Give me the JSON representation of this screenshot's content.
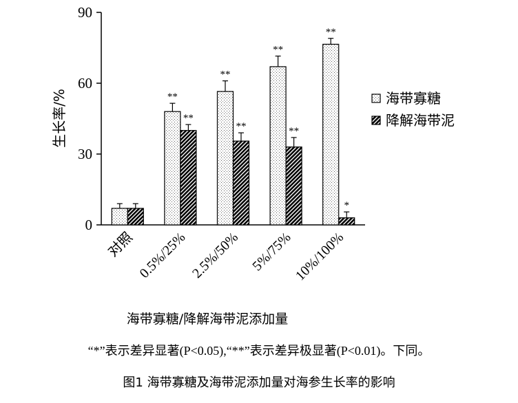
{
  "chart_data": {
    "type": "bar",
    "ylabel": "生长率/%",
    "xlabel": "海带寡糖/降解海带泥添加量",
    "ylim": [
      0,
      90
    ],
    "yticks": [
      0,
      30,
      60,
      90
    ],
    "categories": [
      "对照",
      "0.5%/25%",
      "2.5%/50%",
      "5%/75%",
      "10%/100%"
    ],
    "series": [
      {
        "name": "海带寡糖",
        "pattern": "dotted",
        "values": [
          7,
          48,
          56.5,
          67,
          76.5
        ],
        "errors": [
          2,
          3.5,
          4.5,
          4.5,
          2.5
        ],
        "significance": [
          "",
          "**",
          "**",
          "**",
          "**"
        ]
      },
      {
        "name": "降解海带泥",
        "pattern": "hatched",
        "values": [
          7,
          40,
          35.5,
          33,
          3
        ],
        "errors": [
          2,
          2.5,
          3.5,
          4,
          2.5
        ],
        "significance": [
          "",
          "**",
          "**",
          "**",
          "*"
        ]
      }
    ],
    "legend_position": "right"
  },
  "caption": {
    "note": "“*”表示差异显著(P<0.05),“**”表示差异极显著(P<0.01)。下同。",
    "figure": "图1   海带寡糖及海带泥添加量对海参生长率的影响"
  }
}
